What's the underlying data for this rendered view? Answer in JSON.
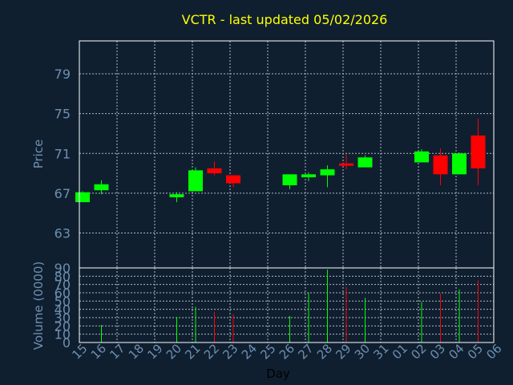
{
  "chart_data": {
    "type": "candlestick",
    "title": "VCTR - last updated 05/02/2026",
    "xlabel": "Day",
    "price_ylabel": "Price",
    "volume_ylabel": "Volume (0000)",
    "grid": true,
    "x_tick_labels": [
      "15",
      "16",
      "17",
      "18",
      "19",
      "20",
      "21",
      "22",
      "23",
      "24",
      "25",
      "26",
      "27",
      "28",
      "29",
      "30",
      "31",
      "01",
      "02",
      "03",
      "04",
      "05",
      "06"
    ],
    "price_ticks": [
      79,
      75,
      71,
      67,
      63
    ],
    "price_ylim": [
      59.5,
      82.3
    ],
    "volume_ticks": [
      90,
      80,
      70,
      60,
      50,
      40,
      30,
      20,
      10,
      0
    ],
    "volume_ylim": [
      0,
      90
    ],
    "colors": {
      "up": "#00ff00",
      "down": "#ff0000",
      "title": "#ffff00",
      "axis_text": "#6f8faf",
      "frame": "#ffffff",
      "grid": "#b0b8c0",
      "background": "#0f1f30"
    },
    "candles": [
      {
        "day": "15",
        "open": 66.1,
        "high": 67.2,
        "low": 66.1,
        "close": 67.1,
        "volume": 0
      },
      {
        "day": "16",
        "open": 67.3,
        "high": 68.3,
        "low": 66.9,
        "close": 67.9,
        "volume": 21
      },
      {
        "day": "20",
        "open": 66.6,
        "high": 67.1,
        "low": 66.1,
        "close": 66.9,
        "volume": 31
      },
      {
        "day": "21",
        "open": 67.2,
        "high": 69.6,
        "low": 67.2,
        "close": 69.3,
        "volume": 43
      },
      {
        "day": "22",
        "open": 69.5,
        "high": 70.2,
        "low": 68.8,
        "close": 69.0,
        "volume": 37
      },
      {
        "day": "23",
        "open": 68.8,
        "high": 68.8,
        "low": 67.6,
        "close": 68.0,
        "volume": 34
      },
      {
        "day": "26",
        "open": 67.8,
        "high": 68.9,
        "low": 67.4,
        "close": 68.9,
        "volume": 32
      },
      {
        "day": "27",
        "open": 68.6,
        "high": 69.1,
        "low": 68.2,
        "close": 68.9,
        "volume": 60
      },
      {
        "day": "28",
        "open": 68.8,
        "high": 69.8,
        "low": 67.6,
        "close": 69.4,
        "volume": 88
      },
      {
        "day": "29",
        "open": 70.0,
        "high": 70.9,
        "low": 69.4,
        "close": 69.8,
        "volume": 67
      },
      {
        "day": "30",
        "open": 69.6,
        "high": 70.8,
        "low": 69.6,
        "close": 70.6,
        "volume": 54
      },
      {
        "day": "02",
        "open": 70.1,
        "high": 71.4,
        "low": 70.1,
        "close": 71.2,
        "volume": 49
      },
      {
        "day": "03",
        "open": 70.8,
        "high": 71.5,
        "low": 67.8,
        "close": 68.9,
        "volume": 59
      },
      {
        "day": "04",
        "open": 68.9,
        "high": 71.1,
        "low": 68.9,
        "close": 71.0,
        "volume": 64
      },
      {
        "day": "05",
        "open": 72.8,
        "high": 74.5,
        "low": 67.8,
        "close": 69.5,
        "volume": 75
      }
    ]
  }
}
